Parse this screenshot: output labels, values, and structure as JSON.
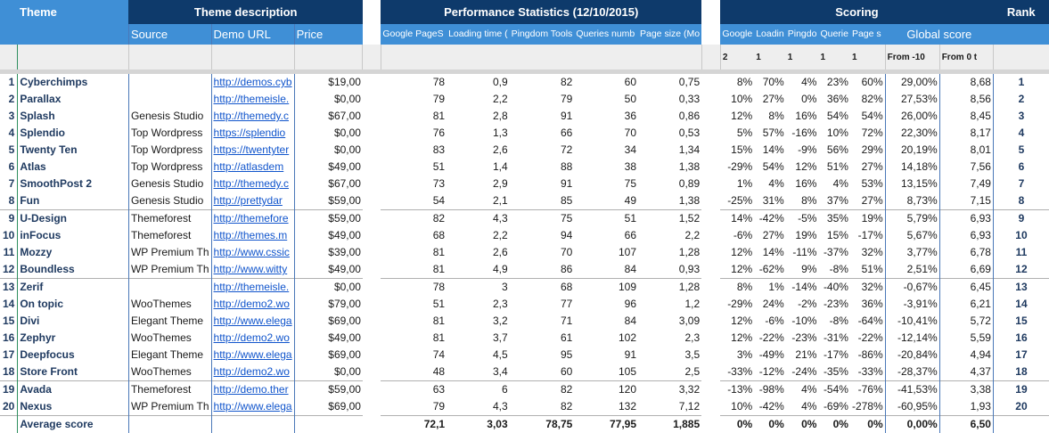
{
  "headers": {
    "theme": "Theme",
    "theme_description": "Theme description",
    "performance": "Performance Statistics (12/10/2015)",
    "scoring": "Scoring",
    "rank": "Rank",
    "source": "Source",
    "demo_url": "Demo URL",
    "price": "Price",
    "google_pagespeed": "Google PageS",
    "loading_time": "Loading time (",
    "pingdom_tools": "Pingdom Tools",
    "queries_number": "Queries numb",
    "page_size": "Page size (Mo",
    "s_google": "Google",
    "s_loading": "Loadin",
    "s_pingdom": "Pingdo",
    "s_queries": "Querie",
    "s_page": "Page s",
    "global_score": "Global score",
    "weights": [
      "2",
      "1",
      "1",
      "1",
      "1"
    ],
    "from_minus10": "From -10",
    "from_0": "From 0 t"
  },
  "rows": [
    {
      "idx": "1",
      "name": "Cyberchimps",
      "source": "",
      "url": "http://demos.cyb",
      "price": "$19,00",
      "g": "78",
      "l": "0,9",
      "p": "82",
      "q": "60",
      "s": "0,75",
      "sg": "8%",
      "sl": "70%",
      "sp": "4%",
      "sq": "23%",
      "ss": "60%",
      "gs1": "29,00%",
      "gs2": "8,68",
      "rank": "1"
    },
    {
      "idx": "2",
      "name": "Parallax",
      "source": "",
      "url": "http://themeisle.",
      "price": "$0,00",
      "g": "79",
      "l": "2,2",
      "p": "79",
      "q": "50",
      "s": "0,33",
      "sg": "10%",
      "sl": "27%",
      "sp": "0%",
      "sq": "36%",
      "ss": "82%",
      "gs1": "27,53%",
      "gs2": "8,56",
      "rank": "2"
    },
    {
      "idx": "3",
      "name": "Splash",
      "source": "Genesis Studio",
      "url": "http://themedy.c",
      "price": "$67,00",
      "g": "81",
      "l": "2,8",
      "p": "91",
      "q": "36",
      "s": "0,86",
      "sg": "12%",
      "sl": "8%",
      "sp": "16%",
      "sq": "54%",
      "ss": "54%",
      "gs1": "26,00%",
      "gs2": "8,45",
      "rank": "3"
    },
    {
      "idx": "4",
      "name": "Splendio",
      "source": "Top Wordpress",
      "url": "https://splendio",
      "price": "$0,00",
      "g": "76",
      "l": "1,3",
      "p": "66",
      "q": "70",
      "s": "0,53",
      "sg": "5%",
      "sl": "57%",
      "sp": "-16%",
      "sq": "10%",
      "ss": "72%",
      "gs1": "22,30%",
      "gs2": "8,17",
      "rank": "4"
    },
    {
      "idx": "5",
      "name": "Twenty Ten",
      "source": "Top Wordpress",
      "url": "https://twentyter",
      "price": "$0,00",
      "g": "83",
      "l": "2,6",
      "p": "72",
      "q": "34",
      "s": "1,34",
      "sg": "15%",
      "sl": "14%",
      "sp": "-9%",
      "sq": "56%",
      "ss": "29%",
      "gs1": "20,19%",
      "gs2": "8,01",
      "rank": "5"
    },
    {
      "idx": "6",
      "name": "Atlas",
      "source": "Top Wordpress",
      "url": "http://atlasdem",
      "price": "$49,00",
      "g": "51",
      "l": "1,4",
      "p": "88",
      "q": "38",
      "s": "1,38",
      "sg": "-29%",
      "sl": "54%",
      "sp": "12%",
      "sq": "51%",
      "ss": "27%",
      "gs1": "14,18%",
      "gs2": "7,56",
      "rank": "6"
    },
    {
      "idx": "7",
      "name": "SmoothPost 2",
      "source": "Genesis Studio",
      "url": "http://themedy.c",
      "price": "$67,00",
      "g": "73",
      "l": "2,9",
      "p": "91",
      "q": "75",
      "s": "0,89",
      "sg": "1%",
      "sl": "4%",
      "sp": "16%",
      "sq": "4%",
      "ss": "53%",
      "gs1": "13,15%",
      "gs2": "7,49",
      "rank": "7"
    },
    {
      "idx": "8",
      "name": "Fun",
      "source": "Genesis Studio",
      "url": "http://prettydar",
      "price": "$59,00",
      "g": "54",
      "l": "2,1",
      "p": "85",
      "q": "49",
      "s": "1,38",
      "sg": "-25%",
      "sl": "31%",
      "sp": "8%",
      "sq": "37%",
      "ss": "27%",
      "gs1": "8,73%",
      "gs2": "7,15",
      "rank": "8"
    },
    {
      "idx": "9",
      "name": "U-Design",
      "source": "Themeforest",
      "url": "http://themefore",
      "price": "$59,00",
      "g": "82",
      "l": "4,3",
      "p": "75",
      "q": "51",
      "s": "1,52",
      "sg": "14%",
      "sl": "-42%",
      "sp": "-5%",
      "sq": "35%",
      "ss": "19%",
      "gs1": "5,79%",
      "gs2": "6,93",
      "rank": "9",
      "grp": true
    },
    {
      "idx": "10",
      "name": "inFocus",
      "source": "Themeforest",
      "url": "http://themes.m",
      "price": "$49,00",
      "g": "68",
      "l": "2,2",
      "p": "94",
      "q": "66",
      "s": "2,2",
      "sg": "-6%",
      "sl": "27%",
      "sp": "19%",
      "sq": "15%",
      "ss": "-17%",
      "gs1": "5,67%",
      "gs2": "6,93",
      "rank": "10"
    },
    {
      "idx": "11",
      "name": "Mozzy",
      "source": "WP Premium Th",
      "url": "http://www.cssic",
      "price": "$39,00",
      "g": "81",
      "l": "2,6",
      "p": "70",
      "q": "107",
      "s": "1,28",
      "sg": "12%",
      "sl": "14%",
      "sp": "-11%",
      "sq": "-37%",
      "ss": "32%",
      "gs1": "3,77%",
      "gs2": "6,78",
      "rank": "11"
    },
    {
      "idx": "12",
      "name": "Boundless",
      "source": "WP Premium Th",
      "url": "http://www.witty",
      "price": "$49,00",
      "g": "81",
      "l": "4,9",
      "p": "86",
      "q": "84",
      "s": "0,93",
      "sg": "12%",
      "sl": "-62%",
      "sp": "9%",
      "sq": "-8%",
      "ss": "51%",
      "gs1": "2,51%",
      "gs2": "6,69",
      "rank": "12"
    },
    {
      "idx": "13",
      "name": "Zerif",
      "source": "",
      "url": "http://themeisle.",
      "price": "$0,00",
      "g": "78",
      "l": "3",
      "p": "68",
      "q": "109",
      "s": "1,28",
      "sg": "8%",
      "sl": "1%",
      "sp": "-14%",
      "sq": "-40%",
      "ss": "32%",
      "gs1": "-0,67%",
      "gs2": "6,45",
      "rank": "13",
      "grp": true
    },
    {
      "idx": "14",
      "name": "On topic",
      "source": "WooThemes",
      "url": "http://demo2.wo",
      "price": "$79,00",
      "g": "51",
      "l": "2,3",
      "p": "77",
      "q": "96",
      "s": "1,2",
      "sg": "-29%",
      "sl": "24%",
      "sp": "-2%",
      "sq": "-23%",
      "ss": "36%",
      "gs1": "-3,91%",
      "gs2": "6,21",
      "rank": "14"
    },
    {
      "idx": "15",
      "name": "Divi",
      "source": "Elegant Theme",
      "url": "http://www.elega",
      "price": "$69,00",
      "g": "81",
      "l": "3,2",
      "p": "71",
      "q": "84",
      "s": "3,09",
      "sg": "12%",
      "sl": "-6%",
      "sp": "-10%",
      "sq": "-8%",
      "ss": "-64%",
      "gs1": "-10,41%",
      "gs2": "5,72",
      "rank": "15"
    },
    {
      "idx": "16",
      "name": "Zephyr",
      "source": "WooThemes",
      "url": "http://demo2.wo",
      "price": "$49,00",
      "g": "81",
      "l": "3,7",
      "p": "61",
      "q": "102",
      "s": "2,3",
      "sg": "12%",
      "sl": "-22%",
      "sp": "-23%",
      "sq": "-31%",
      "ss": "-22%",
      "gs1": "-12,14%",
      "gs2": "5,59",
      "rank": "16"
    },
    {
      "idx": "17",
      "name": "Deepfocus",
      "source": "Elegant Theme",
      "url": "http://www.elega",
      "price": "$69,00",
      "g": "74",
      "l": "4,5",
      "p": "95",
      "q": "91",
      "s": "3,5",
      "sg": "3%",
      "sl": "-49%",
      "sp": "21%",
      "sq": "-17%",
      "ss": "-86%",
      "gs1": "-20,84%",
      "gs2": "4,94",
      "rank": "17"
    },
    {
      "idx": "18",
      "name": "Store Front",
      "source": "WooThemes",
      "url": "http://demo2.wo",
      "price": "$0,00",
      "g": "48",
      "l": "3,4",
      "p": "60",
      "q": "105",
      "s": "2,5",
      "sg": "-33%",
      "sl": "-12%",
      "sp": "-24%",
      "sq": "-35%",
      "ss": "-33%",
      "gs1": "-28,37%",
      "gs2": "4,37",
      "rank": "18"
    },
    {
      "idx": "19",
      "name": "Avada",
      "source": "Themeforest",
      "url": "http://demo.ther",
      "price": "$59,00",
      "g": "63",
      "l": "6",
      "p": "82",
      "q": "120",
      "s": "3,32",
      "sg": "-13%",
      "sl": "-98%",
      "sp": "4%",
      "sq": "-54%",
      "ss": "-76%",
      "gs1": "-41,53%",
      "gs2": "3,38",
      "rank": "19",
      "grp": true
    },
    {
      "idx": "20",
      "name": "Nexus",
      "source": "WP Premium Th",
      "url": "http://www.elega",
      "price": "$69,00",
      "g": "79",
      "l": "4,3",
      "p": "82",
      "q": "132",
      "s": "7,12",
      "sg": "10%",
      "sl": "-42%",
      "sp": "4%",
      "sq": "-69%",
      "ss": "-278%",
      "gs1": "-60,95%",
      "gs2": "1,93",
      "rank": "20"
    }
  ],
  "average": {
    "label": "Average score",
    "g": "72,1",
    "l": "3,03",
    "p": "78,75",
    "q": "77,95",
    "s": "1,885",
    "sg": "0%",
    "sl": "0%",
    "sp": "0%",
    "sq": "0%",
    "ss": "0%",
    "gs1": "0,00%",
    "gs2": "6,50"
  }
}
